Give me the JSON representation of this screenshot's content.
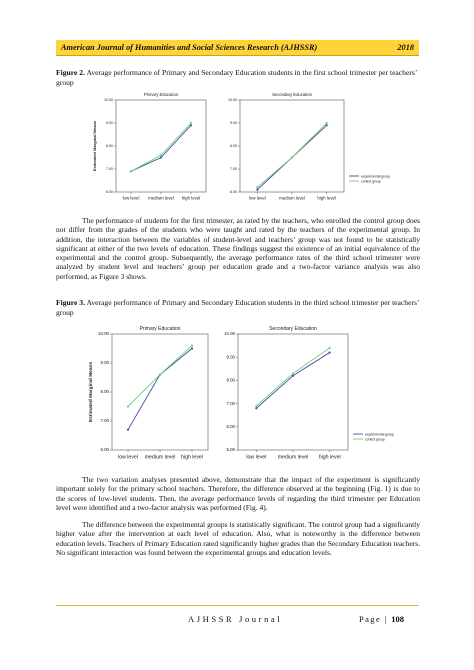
{
  "header": {
    "journal": "American Journal of Humanities and Social Sciences Research (AJHSSR)",
    "year": "2018"
  },
  "figure2": {
    "label": "Figure 2.",
    "caption": " Average performance of Primary and Secondary Education students in the first school trimester per teachers’ group"
  },
  "paragraph1": "The performance of students for the first trimester, as rated by the teachers, who enrolled the control group does not differ from the grades of the students who were taught and rated by the teachers of the experimental group. In addition, the interaction between the variables of student-level and teachers’ group was not found to be statistically significant at either of the two levels of education. These findings suggest the existence of an initial equivalence of the experimental and the control group. Subsequently, the average performance rates of the third school trimester were analyzed by student level and teachers’ group per education grade and a two-factor variance analysis was also performed, as Figure 3 shows.",
  "figure3": {
    "label": "Figure 3.",
    "caption": " Average performance of Primary and Secondary Education students in the third school trimester per teachers’ group"
  },
  "paragraph2": "The two variation analyses presented above, demonstrate that the impact of the experiment is significantly important solely for the primary school teachers. Therefore, the difference observed at the beginning (Fig. 1) is due to the scores of low-level students. Then, the average performance levels of regarding the third trimester per Education level were identified and a two-factor analysis was performed (Fig. 4).",
  "paragraph3": "The difference between the experimental groups is statistically significant. The control group had a significantly higher value after the intervention at each level of education. Also, what is noteworthy is the difference between education levels. Teachers of Primary Education rated significantly higher grades than the Secondary Education teachers. No significant interaction was found between the experimental groups and education levels.",
  "footer": {
    "journal": "AJHSSR Journal",
    "page_label": "Page | ",
    "page_number": "108"
  },
  "chart_data": [
    {
      "type": "line",
      "title": "Primary Education",
      "ylabel": "Estimated Marginal Means",
      "categories": [
        "low level",
        "medium level",
        "high level"
      ],
      "yticks": [
        "6.00",
        "7.00",
        "8.00",
        "9.00",
        "10.00"
      ],
      "ylim": [
        6.0,
        10.0
      ],
      "series": [
        {
          "name": "experimental group",
          "color": "#4a4aa0",
          "values": [
            6.9,
            7.5,
            8.9
          ]
        },
        {
          "name": "control group",
          "color": "#6fcf7a",
          "values": [
            6.9,
            7.6,
            9.0
          ]
        }
      ]
    },
    {
      "type": "line",
      "title": "Secondary Education",
      "ylabel": "",
      "categories": [
        "low level",
        "medium level",
        "high level"
      ],
      "yticks": [
        "6.00",
        "7.00",
        "8.00",
        "9.00",
        "10.00"
      ],
      "ylim": [
        6.0,
        10.0
      ],
      "legend": [
        "experimental group",
        "control group"
      ],
      "legend_position": "bottom-right",
      "series": [
        {
          "name": "experimental group",
          "color": "#4a4aa0",
          "values": [
            6.1,
            7.5,
            8.9
          ]
        },
        {
          "name": "control group",
          "color": "#6fcf7a",
          "values": [
            6.2,
            7.5,
            9.0
          ]
        }
      ]
    },
    {
      "type": "line",
      "title": "Primary Education",
      "ylabel": "Estimated Marginal Means",
      "categories": [
        "low level",
        "medium level",
        "high level"
      ],
      "yticks": [
        "6.00",
        "7.00",
        "8.00",
        "9.00",
        "10.00"
      ],
      "ylim": [
        6.0,
        10.0
      ],
      "series": [
        {
          "name": "experimental group",
          "color": "#4a4aa0",
          "values": [
            6.7,
            8.6,
            9.5
          ]
        },
        {
          "name": "control group",
          "color": "#6fcf7a",
          "values": [
            7.5,
            8.6,
            9.6
          ]
        }
      ]
    },
    {
      "type": "line",
      "title": "Secondary Education",
      "ylabel": "",
      "categories": [
        "low level",
        "medium level",
        "high level"
      ],
      "yticks": [
        "5.00",
        "6.00",
        "7.00",
        "8.00",
        "9.00",
        "10.00"
      ],
      "ylim": [
        5.0,
        10.0
      ],
      "legend": [
        "experimental group",
        "control group"
      ],
      "legend_position": "bottom-right",
      "series": [
        {
          "name": "experimental group",
          "color": "#4a4aa0",
          "values": [
            6.8,
            8.2,
            9.2
          ]
        },
        {
          "name": "control group",
          "color": "#6fcf7a",
          "values": [
            6.9,
            8.3,
            9.4
          ]
        }
      ]
    }
  ]
}
